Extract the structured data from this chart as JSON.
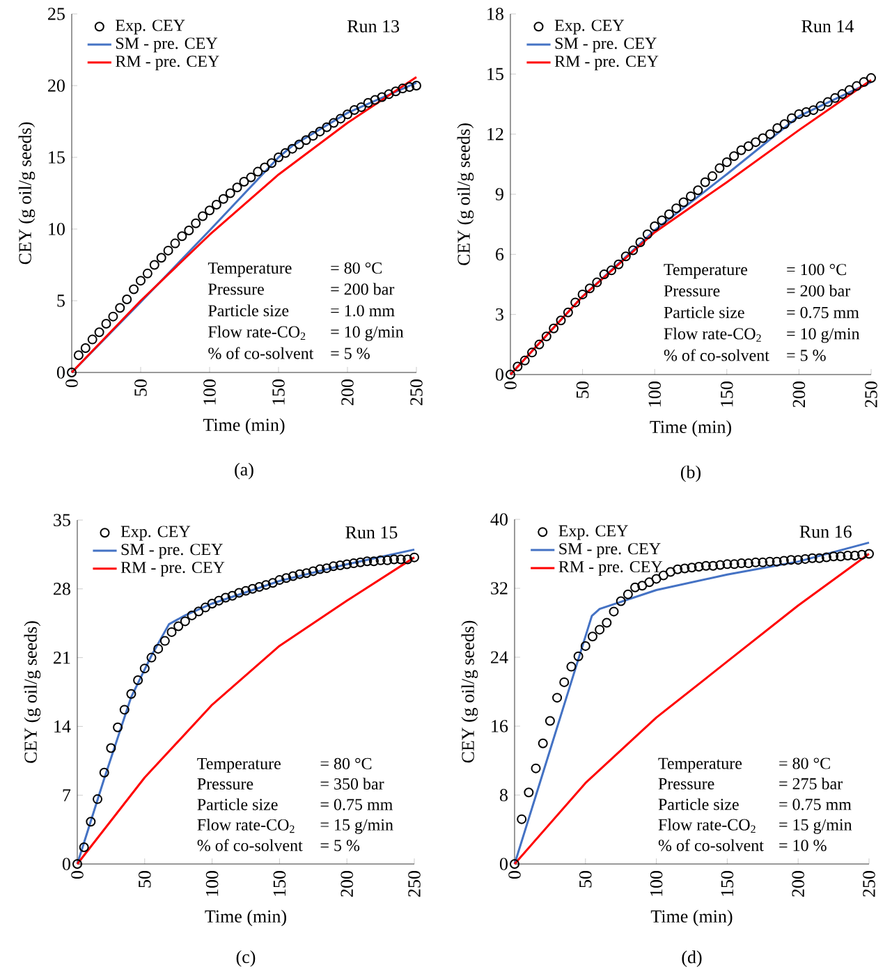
{
  "chart_data": [
    {
      "type": "line",
      "xlabel": "Time (min)",
      "ylabel": "CEY (g oil/g seeds)",
      "xlim": [
        0,
        250
      ],
      "ylim": [
        0,
        25
      ],
      "xticks": [
        0,
        50,
        100,
        150,
        200,
        250
      ],
      "yticks": [
        0,
        5,
        10,
        15,
        20,
        25
      ],
      "legend": "top left",
      "annotations": [
        "Run 13",
        "Temperature",
        "= 80 °C",
        "Pressure",
        "= 200 bar",
        "Particle size",
        "= 1.0 mm",
        "Flow rate-CO$_{2}$",
        "= 10 g/min",
        "% of co-solvent",
        "= 5 %",
        "(a)"
      ],
      "series": [
        {
          "name": "Exp. CEY",
          "type": "scatter",
          "marker": "circle",
          "color": "#000000",
          "x": [
            0,
            5,
            10,
            15,
            20,
            25,
            30,
            35,
            40,
            45,
            50,
            55,
            60,
            65,
            70,
            75,
            80,
            85,
            90,
            95,
            100,
            105,
            110,
            115,
            120,
            125,
            130,
            135,
            140,
            145,
            150,
            155,
            160,
            165,
            170,
            175,
            180,
            185,
            190,
            195,
            200,
            205,
            210,
            215,
            220,
            225,
            230,
            235,
            240,
            245,
            250
          ],
          "values": [
            0,
            1.2,
            1.7,
            2.3,
            2.8,
            3.4,
            3.9,
            4.5,
            5.1,
            5.8,
            6.4,
            6.9,
            7.5,
            8.0,
            8.5,
            9.0,
            9.5,
            9.9,
            10.4,
            10.9,
            11.3,
            11.7,
            12.1,
            12.5,
            12.9,
            13.3,
            13.6,
            14.0,
            14.3,
            14.6,
            15.0,
            15.3,
            15.6,
            15.9,
            16.2,
            16.5,
            16.8,
            17.1,
            17.4,
            17.7,
            18.0,
            18.3,
            18.5,
            18.8,
            19.0,
            19.2,
            19.4,
            19.6,
            19.8,
            19.9,
            20.0
          ]
        },
        {
          "name": "SM - pre.  CEY",
          "color": "#4472c4",
          "x": [
            0,
            50,
            100,
            150,
            160,
            200,
            250
          ],
          "values": [
            0,
            4.9,
            9.9,
            15.0,
            15.8,
            18.1,
            20.2
          ]
        },
        {
          "name": "RM - pre. CEY",
          "color": "#ff0000",
          "x": [
            0,
            50,
            100,
            150,
            200,
            250
          ],
          "values": [
            0,
            5.0,
            9.6,
            13.8,
            17.4,
            20.6
          ]
        }
      ]
    },
    {
      "type": "line",
      "xlabel": "Time (min)",
      "ylabel": "CEY (g oil/g seeds)",
      "xlim": [
        0,
        250
      ],
      "ylim": [
        0,
        18
      ],
      "xticks": [
        0,
        50,
        100,
        150,
        200,
        250
      ],
      "yticks": [
        0,
        3,
        6,
        9,
        12,
        15,
        18
      ],
      "legend": "top left",
      "annotations": [
        "Run 14",
        "Temperature",
        "= 100 °C",
        "Pressure",
        "= 200 bar",
        "Particle size",
        "= 0.75 mm",
        "Flow rate-CO$_{2}$",
        "= 10 g/min",
        "% of co-solvent",
        "= 5 %",
        "(b)"
      ],
      "series": [
        {
          "name": "Exp. CEY",
          "type": "scatter",
          "marker": "circle",
          "color": "#000000",
          "x": [
            0,
            5,
            10,
            15,
            20,
            25,
            30,
            35,
            40,
            45,
            50,
            55,
            60,
            65,
            70,
            75,
            80,
            85,
            90,
            95,
            100,
            105,
            110,
            115,
            120,
            125,
            130,
            135,
            140,
            145,
            150,
            155,
            160,
            165,
            170,
            175,
            180,
            185,
            190,
            195,
            200,
            205,
            210,
            215,
            220,
            225,
            230,
            235,
            240,
            245,
            250
          ],
          "values": [
            0,
            0.4,
            0.7,
            1.1,
            1.5,
            1.9,
            2.3,
            2.7,
            3.1,
            3.6,
            4.0,
            4.3,
            4.6,
            5.0,
            5.2,
            5.5,
            5.9,
            6.2,
            6.6,
            7.0,
            7.4,
            7.7,
            8.0,
            8.3,
            8.6,
            8.9,
            9.2,
            9.6,
            9.9,
            10.3,
            10.6,
            10.9,
            11.2,
            11.4,
            11.6,
            11.8,
            12.0,
            12.3,
            12.5,
            12.8,
            13.0,
            13.1,
            13.2,
            13.4,
            13.6,
            13.8,
            14.0,
            14.2,
            14.4,
            14.6,
            14.8
          ]
        },
        {
          "name": "SM - pre.  CEY",
          "color": "#4472c4",
          "x": [
            0,
            50,
            100,
            150,
            200,
            250
          ],
          "values": [
            0,
            3.9,
            7.2,
            10.0,
            12.9,
            14.6
          ]
        },
        {
          "name": "RM - pre. CEY",
          "color": "#ff0000",
          "x": [
            0,
            50,
            100,
            150,
            200,
            250
          ],
          "values": [
            0,
            3.9,
            7.1,
            9.6,
            12.2,
            14.7
          ]
        }
      ]
    },
    {
      "type": "line",
      "xlabel": "Time (min)",
      "ylabel": "CEY (g oil/g seeds)",
      "xlim": [
        0,
        250
      ],
      "ylim": [
        0,
        35
      ],
      "xticks": [
        0,
        50,
        100,
        150,
        200,
        250
      ],
      "yticks": [
        0,
        7,
        14,
        21,
        28,
        35
      ],
      "legend": "top left",
      "annotations": [
        "Run 15",
        "Temperature",
        "= 80 °C",
        "Pressure",
        "= 350 bar",
        "Particle size",
        "= 0.75 mm",
        "Flow rate-CO$_{2}$",
        "= 15 g/min",
        "% of co-solvent",
        "= 5 %",
        "(c)"
      ],
      "series": [
        {
          "name": "Exp. CEY",
          "type": "scatter",
          "marker": "circle",
          "color": "#000000",
          "x": [
            0,
            5,
            10,
            15,
            20,
            25,
            30,
            35,
            40,
            45,
            50,
            55,
            60,
            65,
            70,
            75,
            80,
            85,
            90,
            95,
            100,
            105,
            110,
            115,
            120,
            125,
            130,
            135,
            140,
            145,
            150,
            155,
            160,
            165,
            170,
            175,
            180,
            185,
            190,
            195,
            200,
            205,
            210,
            215,
            220,
            225,
            230,
            235,
            240,
            245,
            250
          ],
          "values": [
            0,
            1.7,
            4.3,
            6.6,
            9.3,
            11.8,
            13.9,
            15.7,
            17.3,
            18.7,
            19.9,
            21.0,
            21.9,
            22.7,
            23.6,
            24.2,
            24.7,
            25.3,
            25.7,
            26.1,
            26.5,
            26.8,
            27.1,
            27.3,
            27.6,
            27.8,
            28.0,
            28.2,
            28.4,
            28.6,
            28.9,
            29.1,
            29.3,
            29.5,
            29.6,
            29.8,
            30.0,
            30.1,
            30.3,
            30.4,
            30.5,
            30.6,
            30.7,
            30.8,
            30.8,
            30.9,
            30.9,
            31.0,
            31.0,
            31.0,
            31.2
          ]
        },
        {
          "name": "SM - pre.  CEY",
          "color": "#4472c4",
          "x": [
            0,
            20,
            40,
            55,
            68,
            80,
            100,
            150,
            200,
            250
          ],
          "values": [
            0,
            8.7,
            17.0,
            21.2,
            24.4,
            25.3,
            26.5,
            28.8,
            30.5,
            32.0
          ]
        },
        {
          "name": "RM - pre. CEY",
          "color": "#ff0000",
          "x": [
            0,
            50,
            100,
            150,
            200,
            250
          ],
          "values": [
            0,
            8.8,
            16.2,
            22.2,
            26.8,
            31.2
          ]
        }
      ]
    },
    {
      "type": "line",
      "xlabel": "Time (min)",
      "ylabel": "CEY (g oil/g seeds)",
      "xlim": [
        0,
        250
      ],
      "ylim": [
        0,
        40
      ],
      "xticks": [
        0,
        50,
        100,
        150,
        200,
        250
      ],
      "yticks": [
        0,
        8,
        16,
        24,
        32,
        40
      ],
      "legend": "top left",
      "annotations": [
        "Run 16",
        "Temperature",
        "= 80 °C",
        "Pressure",
        "= 275 bar",
        "Particle size",
        "= 0.75 mm",
        "Flow rate-CO$_{2}$",
        "= 15 g/min",
        "% of co-solvent",
        "= 10 %",
        "(d)"
      ],
      "series": [
        {
          "name": "Exp. CEY",
          "type": "scatter",
          "marker": "circle",
          "color": "#000000",
          "x": [
            0,
            5,
            10,
            15,
            20,
            25,
            30,
            35,
            40,
            45,
            50,
            55,
            60,
            65,
            70,
            75,
            80,
            85,
            90,
            95,
            100,
            105,
            110,
            115,
            120,
            125,
            130,
            135,
            140,
            145,
            150,
            155,
            160,
            165,
            170,
            175,
            180,
            185,
            190,
            195,
            200,
            205,
            210,
            215,
            220,
            225,
            230,
            235,
            240,
            245,
            250
          ],
          "values": [
            0,
            5.2,
            8.3,
            11.1,
            14.0,
            16.6,
            19.3,
            21.1,
            22.9,
            24.1,
            25.3,
            26.4,
            27.2,
            28.0,
            29.3,
            30.5,
            31.3,
            32.1,
            32.3,
            32.7,
            33.1,
            33.5,
            33.9,
            34.2,
            34.3,
            34.4,
            34.5,
            34.6,
            34.6,
            34.7,
            34.8,
            34.8,
            34.9,
            34.9,
            35.0,
            35.0,
            35.1,
            35.1,
            35.2,
            35.3,
            35.3,
            35.4,
            35.5,
            35.5,
            35.6,
            35.7,
            35.7,
            35.8,
            35.8,
            35.9,
            36.0
          ]
        },
        {
          "name": "SM - pre.  CEY",
          "color": "#4472c4",
          "x": [
            0,
            54.5,
            60,
            100,
            150,
            200,
            250
          ],
          "values": [
            0,
            28.8,
            29.6,
            31.8,
            33.6,
            35.1,
            37.3
          ]
        },
        {
          "name": "RM - pre. CEY",
          "color": "#ff0000",
          "x": [
            0,
            50,
            100,
            150,
            200,
            250
          ],
          "values": [
            0,
            9.4,
            17.0,
            23.5,
            30.0,
            36.0
          ]
        }
      ]
    }
  ]
}
